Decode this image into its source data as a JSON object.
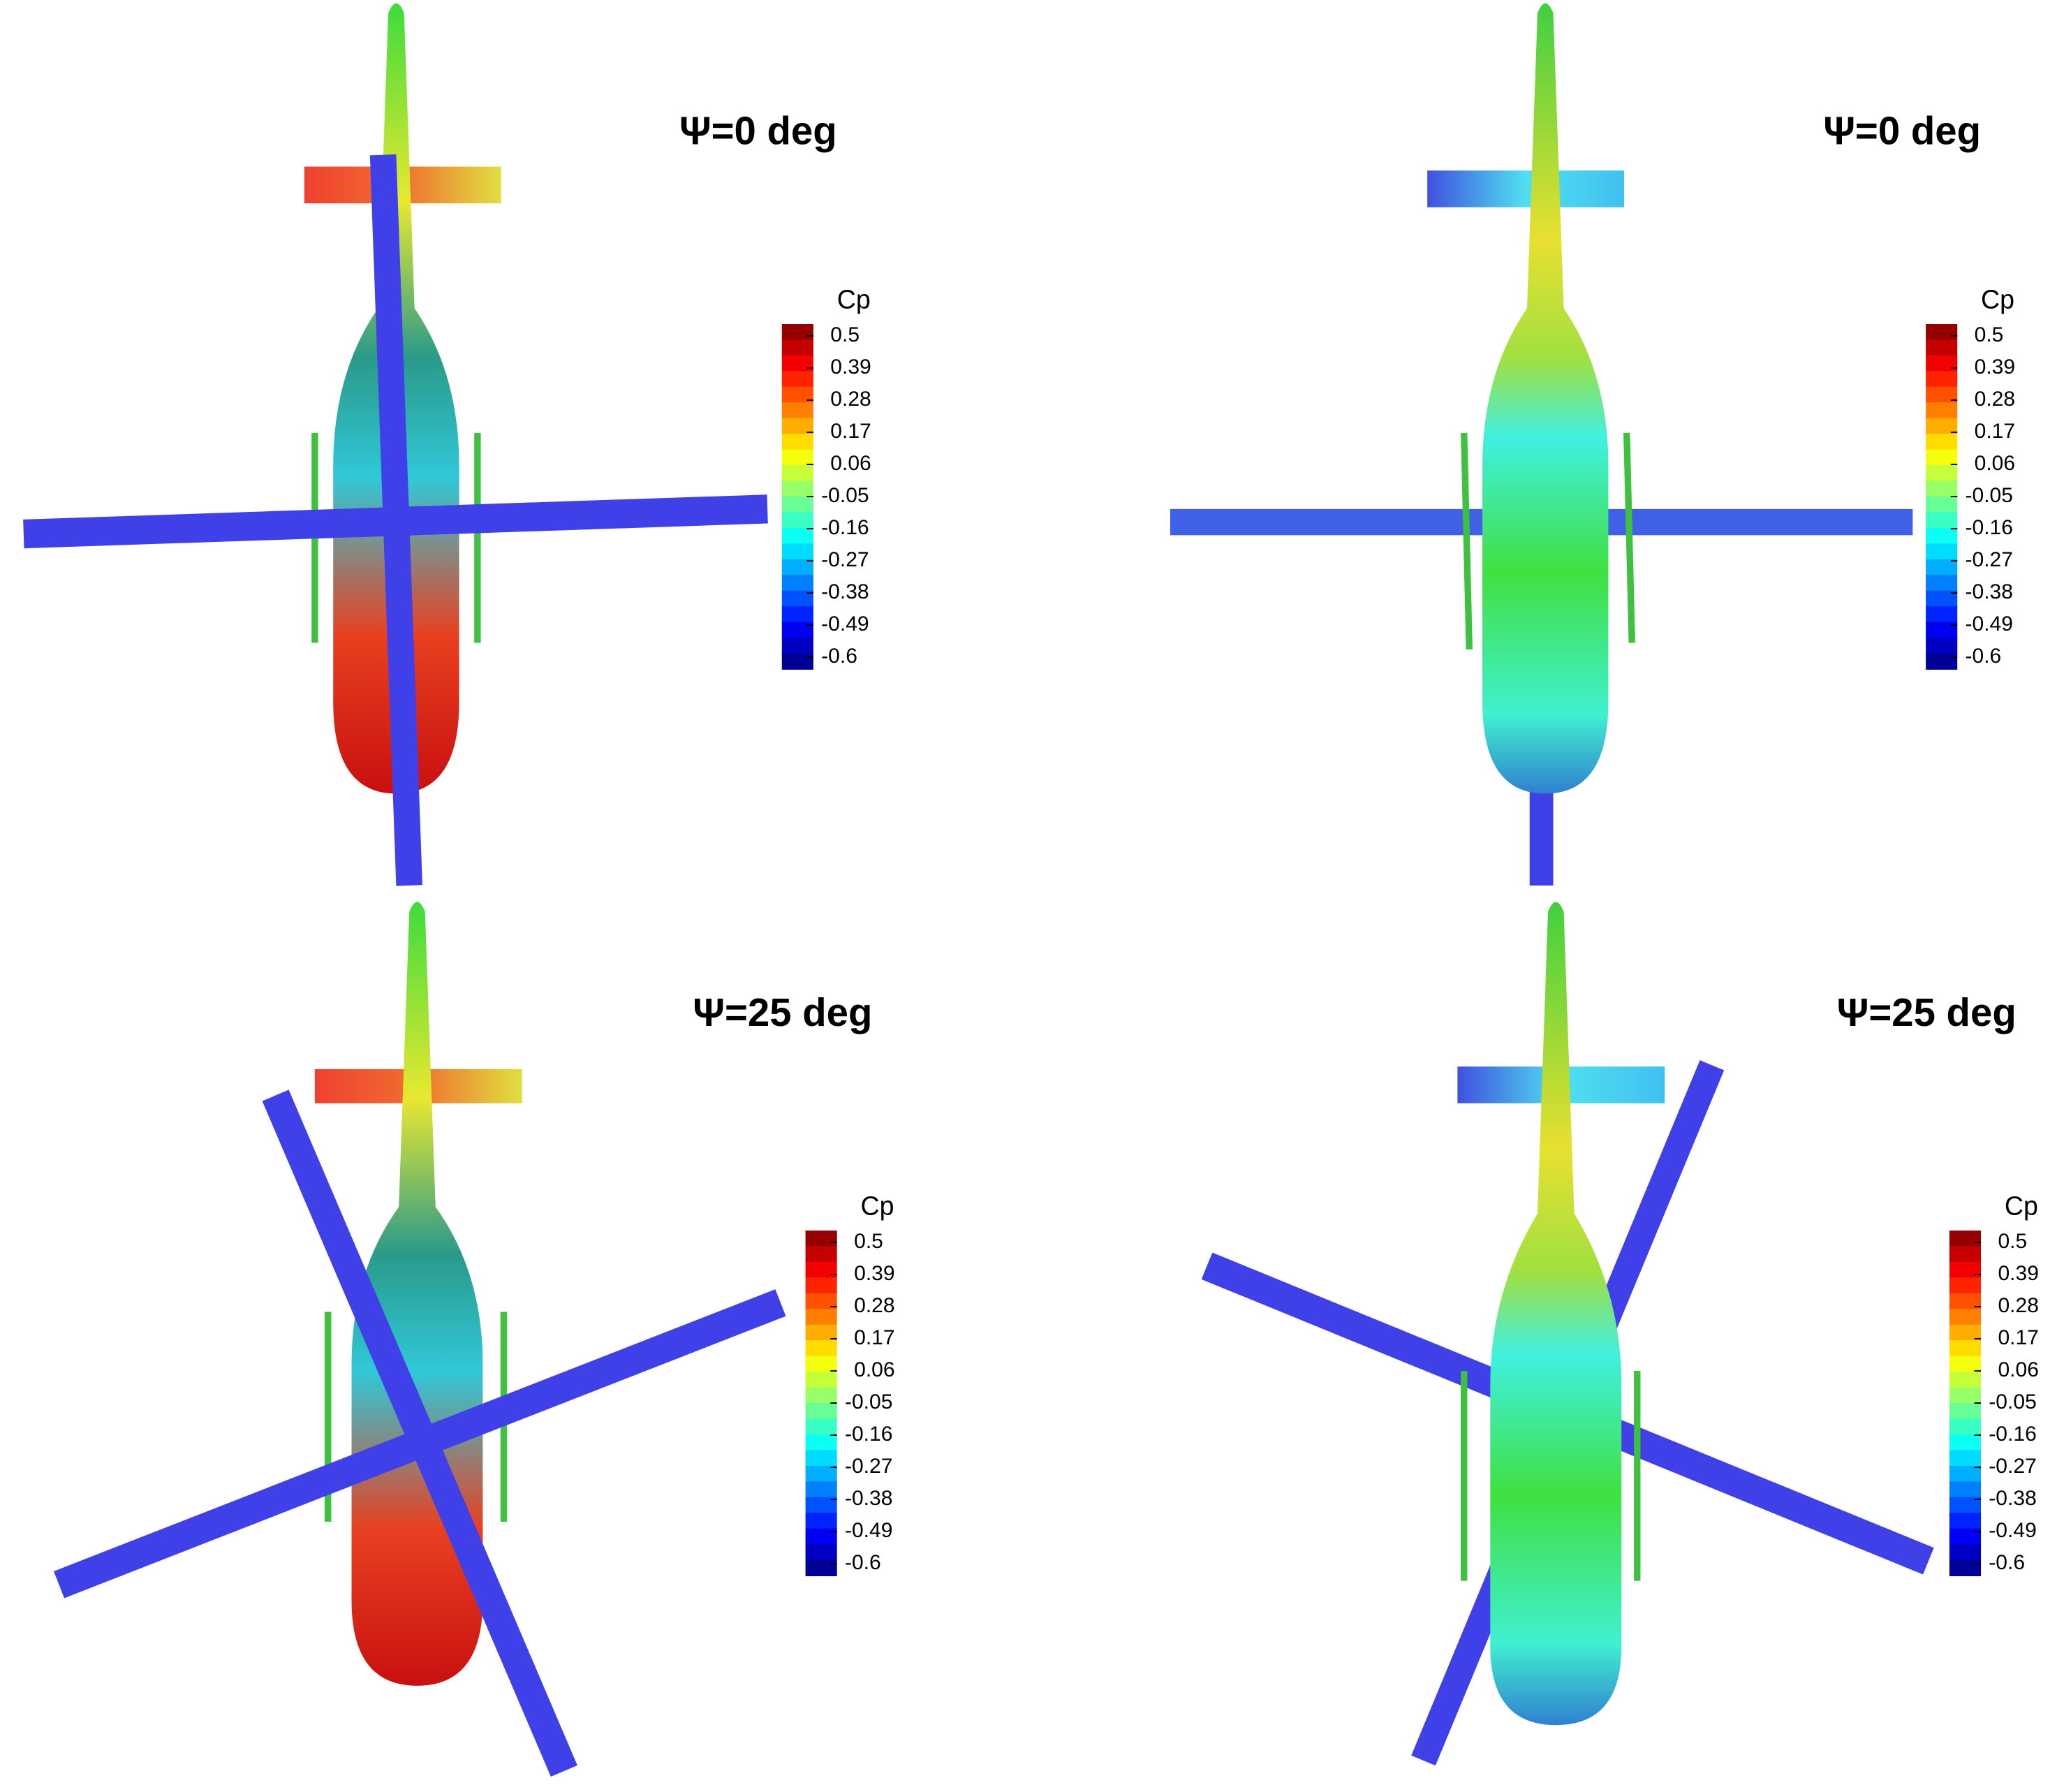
{
  "panels": [
    {
      "title": "Ψ=0 deg",
      "colorbar": {
        "title": "Cp",
        "ticks": [
          0.5,
          0.39,
          0.28,
          0.17,
          0.06,
          -0.05,
          -0.16,
          -0.27,
          -0.38,
          -0.49,
          -0.6
        ]
      }
    },
    {
      "title": "Ψ=0 deg",
      "colorbar": {
        "title": "Cp",
        "ticks": [
          0.5,
          0.39,
          0.28,
          0.17,
          0.06,
          -0.05,
          -0.16,
          -0.27,
          -0.38,
          -0.49,
          -0.6
        ]
      }
    },
    {
      "title": "Ψ=25 deg",
      "colorbar": {
        "title": "Cp",
        "ticks": [
          0.5,
          0.39,
          0.28,
          0.17,
          0.06,
          -0.05,
          -0.16,
          -0.27,
          -0.38,
          -0.49,
          -0.6
        ]
      }
    },
    {
      "title": "Ψ=25 deg",
      "colorbar": {
        "title": "Cp",
        "ticks": [
          0.5,
          0.39,
          0.28,
          0.17,
          0.06,
          -0.05,
          -0.16,
          -0.27,
          -0.38,
          -0.49,
          -0.6
        ]
      }
    }
  ]
}
